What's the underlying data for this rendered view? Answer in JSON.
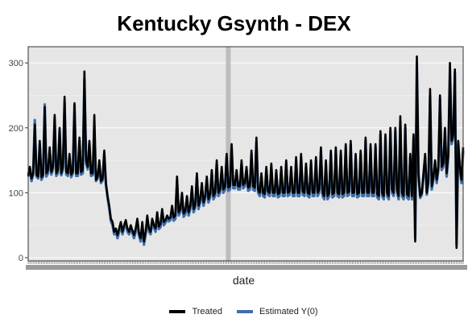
{
  "chart_data": {
    "type": "line",
    "title": "Kentucky Gsynth - DEX",
    "xlabel": "date",
    "ylabel": "",
    "ylim": [
      -5,
      325
    ],
    "yticks": [
      0,
      100,
      200,
      300
    ],
    "grid": true,
    "legend_position": "bottom",
    "treatment_marker_fraction": 0.46,
    "series": [
      {
        "name": "Treated",
        "color": "#000000",
        "values": [
          125,
          140,
          122,
          130,
          205,
          128,
          125,
          180,
          124,
          128,
          232,
          130,
          135,
          170,
          132,
          140,
          220,
          130,
          135,
          200,
          130,
          140,
          248,
          132,
          130,
          160,
          128,
          133,
          238,
          130,
          130,
          185,
          132,
          135,
          287,
          150,
          140,
          180,
          130,
          130,
          220,
          120,
          125,
          150,
          118,
          122,
          165,
          115,
          95,
          80,
          60,
          55,
          40,
          45,
          35,
          45,
          55,
          40,
          50,
          58,
          45,
          40,
          50,
          42,
          35,
          45,
          60,
          38,
          30,
          55,
          25,
          40,
          65,
          45,
          40,
          60,
          50,
          45,
          70,
          48,
          52,
          75,
          55,
          58,
          65,
          60,
          62,
          80,
          62,
          65,
          125,
          70,
          75,
          100,
          68,
          72,
          95,
          70,
          80,
          110,
          75,
          82,
          130,
          80,
          90,
          115,
          85,
          95,
          125,
          90,
          98,
          135,
          95,
          100,
          150,
          100,
          105,
          140,
          105,
          110,
          160,
          108,
          110,
          175,
          112,
          112,
          135,
          110,
          110,
          150,
          112,
          115,
          140,
          108,
          110,
          165,
          110,
          108,
          185,
          105,
          100,
          130,
          100,
          98,
          140,
          102,
          100,
          145,
          100,
          100,
          135,
          98,
          100,
          140,
          100,
          100,
          150,
          100,
          102,
          140,
          100,
          100,
          155,
          100,
          100,
          160,
          102,
          100,
          145,
          100,
          98,
          150,
          100,
          100,
          155,
          100,
          105,
          170,
          100,
          95,
          150,
          95,
          100,
          165,
          98,
          100,
          170,
          100,
          98,
          165,
          98,
          100,
          175,
          100,
          102,
          180,
          100,
          100,
          160,
          98,
          100,
          165,
          100,
          100,
          185,
          100,
          100,
          175,
          100,
          100,
          175,
          98,
          95,
          195,
          100,
          95,
          190,
          100,
          95,
          200,
          105,
          100,
          200,
          105,
          95,
          218,
          100,
          95,
          205,
          98,
          95,
          160,
          95,
          190,
          25,
          310,
          130,
          95,
          100,
          130,
          160,
          100,
          120,
          260,
          110,
          125,
          150,
          120,
          140,
          250,
          140,
          145,
          200,
          130,
          160,
          300,
          180,
          190,
          290,
          15,
          180,
          140,
          120,
          170
        ]
      },
      {
        "name": "Estimated Y(0)",
        "color": "#3f6ea8",
        "values": [
          128,
          138,
          118,
          128,
          212,
          125,
          122,
          175,
          120,
          125,
          236,
          125,
          130,
          165,
          128,
          136,
          215,
          126,
          130,
          195,
          127,
          136,
          240,
          128,
          126,
          155,
          124,
          130,
          235,
          126,
          126,
          180,
          128,
          130,
          275,
          145,
          136,
          175,
          126,
          127,
          172,
          118,
          122,
          146,
          115,
          119,
          160,
          112,
          92,
          76,
          56,
          50,
          36,
          40,
          30,
          40,
          50,
          36,
          46,
          53,
          40,
          36,
          46,
          38,
          30,
          40,
          55,
          34,
          25,
          50,
          20,
          36,
          60,
          40,
          36,
          56,
          46,
          40,
          66,
          44,
          47,
          70,
          50,
          54,
          60,
          56,
          58,
          75,
          57,
          60,
          120,
          65,
          70,
          95,
          63,
          67,
          90,
          65,
          75,
          105,
          70,
          77,
          125,
          75,
          85,
          110,
          80,
          90,
          120,
          85,
          93,
          130,
          90,
          95,
          145,
          95,
          100,
          135,
          100,
          105,
          155,
          103,
          105,
          170,
          107,
          107,
          130,
          105,
          105,
          145,
          107,
          110,
          135,
          103,
          105,
          160,
          105,
          103,
          178,
          100,
          95,
          125,
          95,
          93,
          135,
          97,
          95,
          140,
          95,
          95,
          130,
          93,
          95,
          135,
          95,
          95,
          145,
          95,
          97,
          135,
          95,
          95,
          150,
          95,
          95,
          155,
          97,
          95,
          140,
          95,
          93,
          145,
          95,
          95,
          150,
          95,
          100,
          165,
          95,
          90,
          145,
          90,
          95,
          160,
          93,
          95,
          165,
          95,
          93,
          160,
          93,
          95,
          170,
          95,
          97,
          175,
          95,
          95,
          155,
          93,
          95,
          160,
          95,
          95,
          180,
          95,
          95,
          170,
          95,
          95,
          170,
          93,
          90,
          190,
          95,
          90,
          185,
          95,
          90,
          195,
          100,
          95,
          195,
          100,
          90,
          210,
          95,
          90,
          200,
          93,
          90,
          155,
          90,
          185,
          30,
          300,
          125,
          92,
          97,
          125,
          155,
          97,
          115,
          250,
          105,
          120,
          145,
          115,
          135,
          245,
          135,
          140,
          195,
          125,
          155,
          290,
          175,
          185,
          285,
          20,
          175,
          135,
          115,
          165
        ]
      }
    ]
  }
}
